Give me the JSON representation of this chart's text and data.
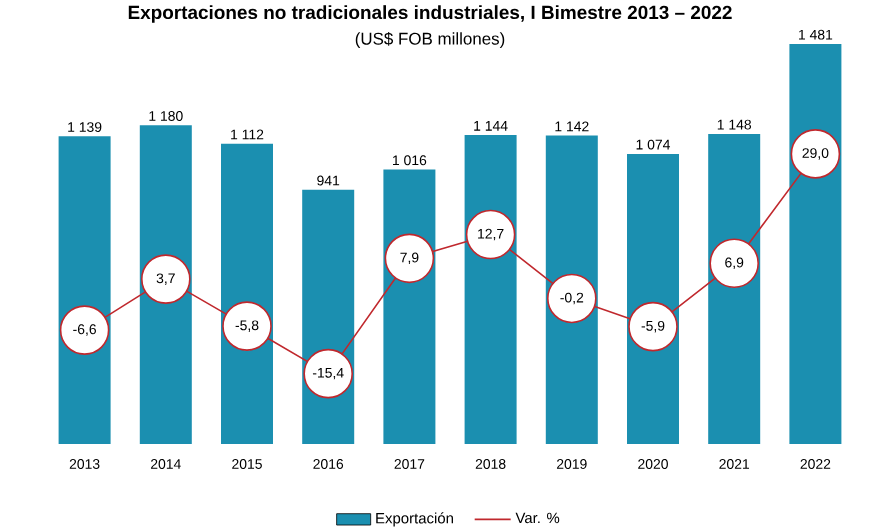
{
  "chart_data": {
    "type": "bar",
    "title": "Exportaciones no tradicionales industriales, I Bimestre 2013 – 2022",
    "subtitle": "(US$ FOB millones)",
    "categories": [
      "2013",
      "2014",
      "2015",
      "2016",
      "2017",
      "2018",
      "2019",
      "2020",
      "2021",
      "2022"
    ],
    "series": [
      {
        "name": "Exportación",
        "type": "bar",
        "color": "#1b8fb0",
        "values": [
          1139,
          1180,
          1112,
          941,
          1016,
          1144,
          1142,
          1074,
          1148,
          1481
        ],
        "value_labels": [
          "1 139",
          "1 180",
          "1 112",
          "941",
          "1 016",
          "1 144",
          "1 142",
          "1 074",
          "1 148",
          "1 481"
        ]
      },
      {
        "name": "Var. %",
        "type": "line",
        "axis": "y2",
        "color": "#c0282d",
        "marker": "circle",
        "values": [
          -6.6,
          3.7,
          -5.8,
          -15.4,
          7.9,
          12.7,
          -0.2,
          -5.9,
          6.9,
          29.0
        ],
        "value_labels": [
          "-6,6",
          "3,7",
          "-5,8",
          "-15,4",
          "7,9",
          "12,7",
          "-0,2",
          "-5,9",
          "6,9",
          "29,0"
        ]
      }
    ],
    "legend": "bottom"
  }
}
